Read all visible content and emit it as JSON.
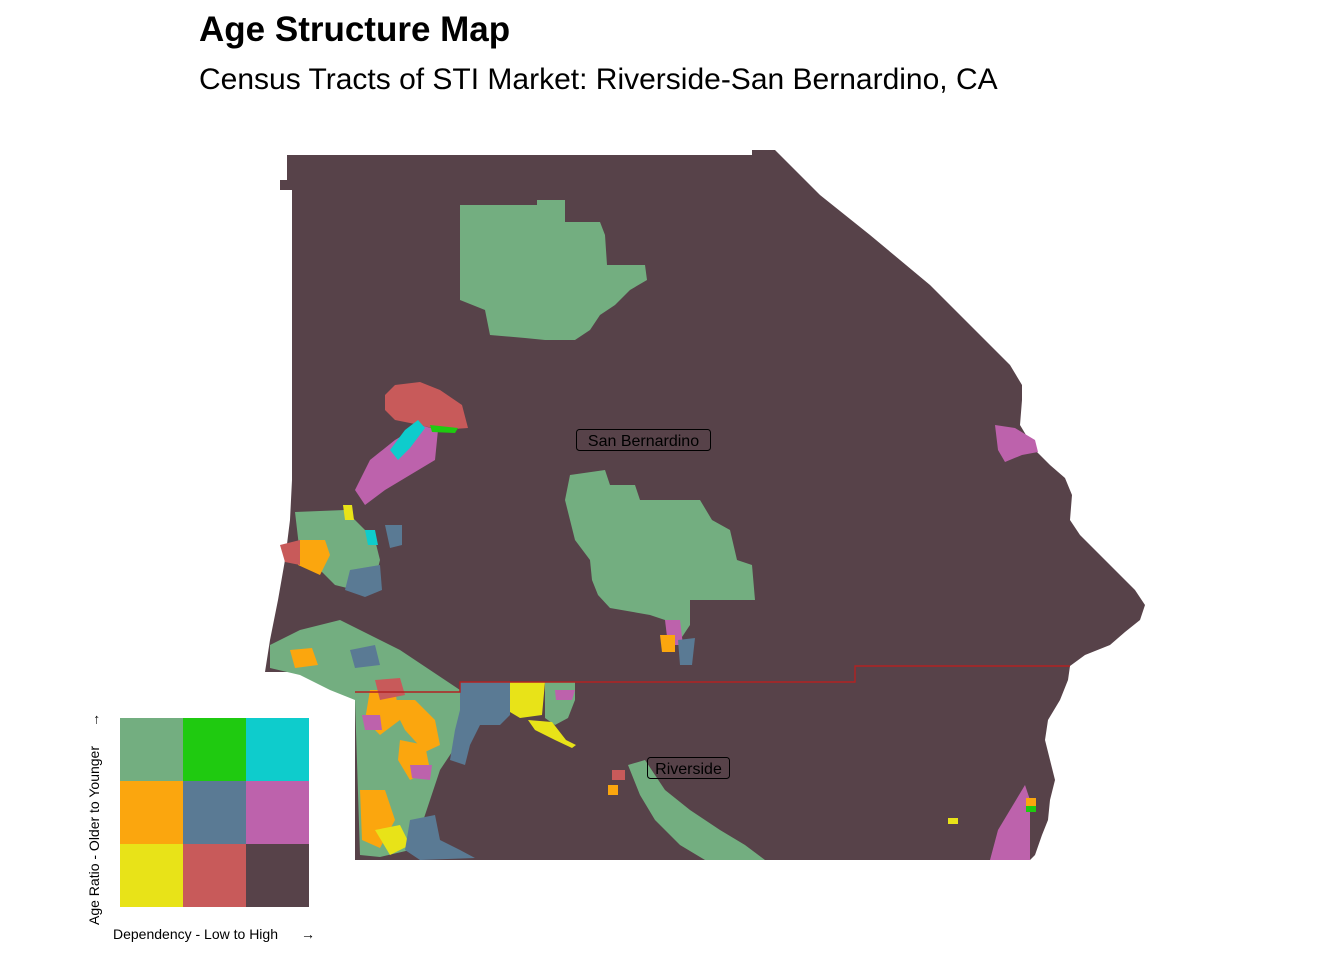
{
  "title": "Age Structure Map",
  "subtitle": "Census Tracts of STI Market: Riverside-San Bernardino, CA",
  "counties": [
    {
      "name": "San Bernardino"
    },
    {
      "name": "Riverside"
    }
  ],
  "legend": {
    "x_label": "Dependency - Low to High",
    "y_label": "Age Ratio - Older to Younger",
    "colors": {
      "row_younger": [
        "#73ae80",
        "#1fca10",
        "#0ecccc"
      ],
      "row_middle": [
        "#fba60e",
        "#5a7a94",
        "#bd62ac"
      ],
      "row_older": [
        "#e8e318",
        "#c85a5a",
        "#574249"
      ]
    }
  },
  "palette": {
    "base": "#574249",
    "green": "#73ae80",
    "bright_green": "#1fca10",
    "cyan": "#0ecccc",
    "orange": "#fba60e",
    "slate": "#5a7a94",
    "magenta": "#bd62ac",
    "yellow": "#e8e318",
    "red": "#c85a5a",
    "county_border": "#b22222"
  }
}
